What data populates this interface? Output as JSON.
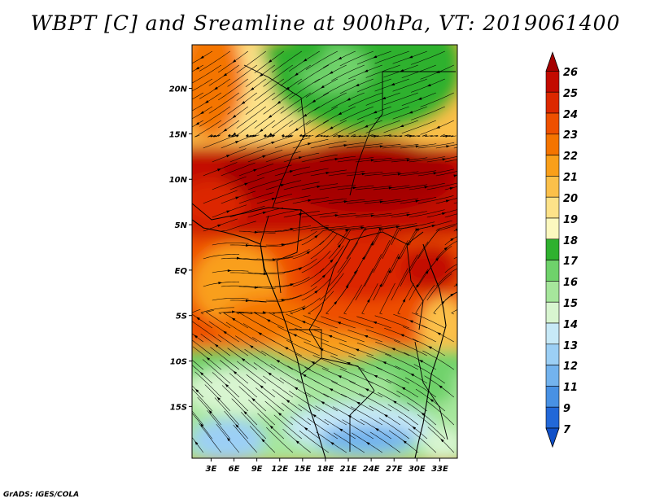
{
  "title": "WBPT [C] and Sreamline at 900hPa, VT: 2019061400",
  "credit": "GrADS: IGES/COLA",
  "map": {
    "lat_labels": [
      "20N",
      "15N",
      "10N",
      "5N",
      "EQ",
      "5S",
      "10S",
      "15S"
    ],
    "lon_labels": [
      "3E",
      "6E",
      "9E",
      "12E",
      "15E",
      "18E",
      "21E",
      "24E",
      "27E",
      "30E",
      "33E"
    ],
    "variable": "wet-bulb potential temperature",
    "overlay": "streamlines"
  },
  "colorbar": {
    "levels": [
      "26",
      "25",
      "24",
      "23",
      "22",
      "21",
      "20",
      "19",
      "18",
      "17",
      "16",
      "15",
      "14",
      "13",
      "12",
      "11",
      "9",
      "7"
    ],
    "colors": [
      "#a50000",
      "#c30a00",
      "#dc2800",
      "#ee5000",
      "#f47400",
      "#f99f1a",
      "#fbc04a",
      "#fde289",
      "#fcf8bf",
      "#2fb12f",
      "#6fd26b",
      "#a6e69c",
      "#d8f5d0",
      "#c7e9f7",
      "#9ccff5",
      "#73b3ee",
      "#4891e4",
      "#2268d8",
      "#1050c8"
    ]
  }
}
